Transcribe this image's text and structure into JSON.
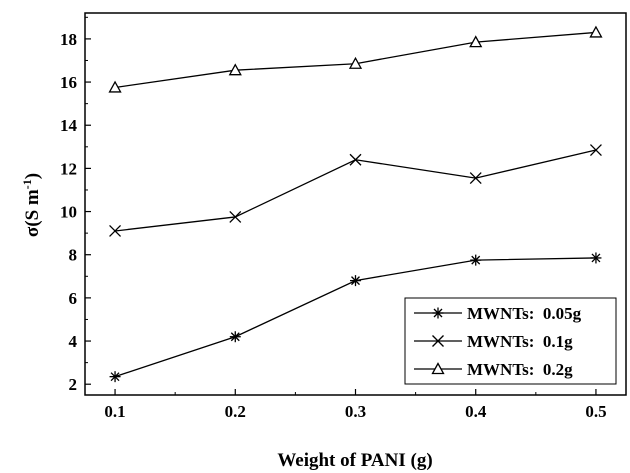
{
  "chart_data": {
    "type": "line",
    "title": "",
    "xlabel": "Weight of PANI  (g)",
    "ylabel": "σ(S m-1)",
    "ylabel_parts": {
      "main": "σ(S m",
      "sup": "-1",
      "close": ")"
    },
    "xlim": [
      0.075,
      0.525
    ],
    "ylim": [
      1.5,
      19.2
    ],
    "x_ticks": [
      "0.1",
      "0.2",
      "0.3",
      "0.4",
      "0.5"
    ],
    "y_ticks": [
      "2",
      "4",
      "6",
      "8",
      "10",
      "12",
      "14",
      "16",
      "18"
    ],
    "x": [
      0.1,
      0.2,
      0.3,
      0.4,
      0.5
    ],
    "grid": false,
    "legend_position": "bottom-right",
    "series": [
      {
        "name": "MWNTs:  0.05g",
        "marker": "asterisk",
        "values": [
          2.35,
          4.2,
          6.8,
          7.75,
          7.85
        ]
      },
      {
        "name": "MWNTs:  0.1g",
        "marker": "cross",
        "values": [
          9.1,
          9.75,
          12.4,
          11.55,
          12.85
        ]
      },
      {
        "name": "MWNTs:  0.2g",
        "marker": "triangle",
        "values": [
          15.75,
          16.55,
          16.85,
          17.85,
          18.3
        ]
      }
    ],
    "color": "#000000"
  }
}
